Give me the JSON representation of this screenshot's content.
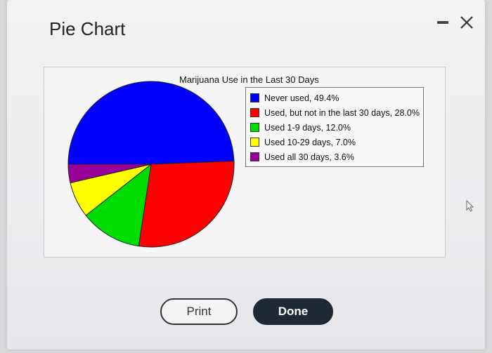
{
  "dialog": {
    "title": "Pie Chart",
    "minimize_icon": "minimize-icon",
    "close_icon": "close-icon"
  },
  "chart_data": {
    "type": "pie",
    "title": "Marijuana Use in the Last 30 Days",
    "legend_position": "right",
    "slices": [
      {
        "label": "Never used, 49.4%",
        "value": 49.4,
        "color": "#0000ff"
      },
      {
        "label": "Used, but not in the last 30 days, 28.0%",
        "value": 28.0,
        "color": "#ff0000"
      },
      {
        "label": "Used 1-9 days, 12.0%",
        "value": 12.0,
        "color": "#00dd00"
      },
      {
        "label": "Used 10-29 days, 7.0%",
        "value": 7.0,
        "color": "#ffff00"
      },
      {
        "label": "Used all 30 days, 3.6%",
        "value": 3.6,
        "color": "#990099"
      }
    ]
  },
  "buttons": {
    "print_label": "Print",
    "done_label": "Done"
  }
}
